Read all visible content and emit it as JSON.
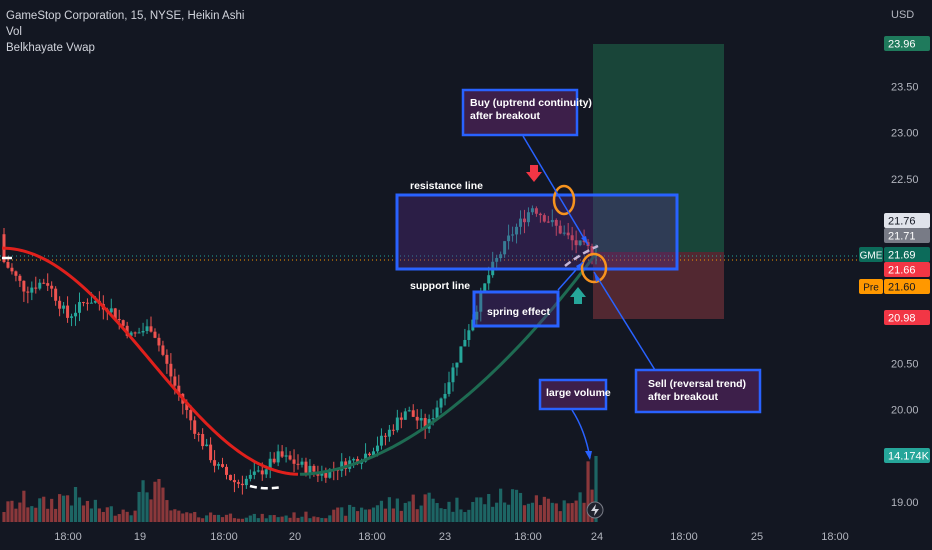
{
  "header": {
    "symbol_line": "GameStop Corporation, 15, NYSE, Heikin Ashi",
    "indicator_vol": "Vol",
    "indicator_vwap": "Belkhayate Vwap"
  },
  "price_scale": {
    "currency": "USD",
    "ticks": [
      "23.50",
      "23.00",
      "22.50",
      "22.00",
      "21.50",
      "20.50",
      "20.00",
      "19.50",
      "19.00"
    ],
    "badges": [
      {
        "label": "23.96",
        "color": "#1f7a5c",
        "text_color": "#ffffff"
      },
      {
        "label": "21.76",
        "color": "#e0e3eb",
        "text_color": "#131722"
      },
      {
        "label": "21.71",
        "color": "#787b86",
        "text_color": "#ffffff"
      },
      {
        "label": "21.69",
        "color": "#0c6b5a",
        "text_color": "#ffffff",
        "tag": "GME"
      },
      {
        "label": "21.66",
        "color": "#f23645",
        "text_color": "#ffffff"
      },
      {
        "label": "21.60",
        "color": "#ff9800",
        "text_color": "#131722",
        "tag": "Pre"
      },
      {
        "label": "20.98",
        "color": "#f23645",
        "text_color": "#ffffff"
      },
      {
        "label": "14.174K",
        "color": "#26a69a",
        "text_color": "#ffffff"
      }
    ]
  },
  "time_axis": {
    "labels": [
      "18:00",
      "19",
      "18:00",
      "20",
      "18:00",
      "23",
      "18:00",
      "24",
      "18:00",
      "25",
      "18:00"
    ]
  },
  "annotations": {
    "resistance": "resistance line",
    "support": "support line",
    "spring": "spring effect",
    "buy_line1": "Buy (uptrend continuity)",
    "buy_line2": "after breakout",
    "sell_line1": "Sell (reversal trend)",
    "sell_line2": "after breakout",
    "volume": "large volume"
  },
  "colors": {
    "background": "#131722",
    "up": "#26a69a",
    "down": "#ef5350",
    "vwap_down": "#e0201c",
    "vwap_up": "#1e6b52",
    "box_border": "#2962ff",
    "highlight_circle": "#f7931e",
    "target_zone": "#1b4a3c",
    "stop_zone": "#5a2a33"
  },
  "chart_data": {
    "type": "candlestick",
    "style": "Heikin Ashi",
    "symbol": "GME",
    "interval": "15",
    "ylim": [
      18.85,
      24.2
    ],
    "grid": false,
    "candles_ohlc_sampled": [
      [
        21.9,
        22.0,
        21.5,
        21.6
      ],
      [
        21.6,
        21.8,
        21.2,
        21.3
      ],
      [
        21.3,
        21.6,
        21.0,
        21.4
      ],
      [
        21.4,
        21.5,
        20.9,
        21.0
      ],
      [
        21.0,
        21.3,
        20.8,
        21.2
      ],
      [
        21.2,
        21.4,
        21.0,
        21.1
      ],
      [
        21.1,
        21.2,
        20.6,
        20.8
      ],
      [
        20.8,
        21.0,
        20.5,
        20.9
      ],
      [
        20.9,
        21.0,
        20.2,
        20.3
      ],
      [
        20.3,
        20.4,
        19.6,
        19.8
      ],
      [
        19.8,
        19.9,
        19.3,
        19.4
      ],
      [
        19.4,
        19.5,
        19.0,
        19.2
      ],
      [
        19.2,
        19.4,
        19.0,
        19.3
      ],
      [
        19.3,
        19.6,
        19.2,
        19.5
      ],
      [
        19.5,
        19.6,
        19.3,
        19.4
      ],
      [
        19.4,
        19.5,
        19.2,
        19.3
      ],
      [
        19.3,
        19.5,
        19.2,
        19.4
      ],
      [
        19.4,
        19.5,
        19.3,
        19.5
      ],
      [
        19.5,
        19.8,
        19.4,
        19.7
      ],
      [
        19.7,
        20.1,
        19.6,
        20.0
      ],
      [
        20.0,
        20.1,
        19.7,
        19.8
      ],
      [
        19.8,
        20.4,
        19.8,
        20.3
      ],
      [
        20.3,
        21.0,
        20.2,
        20.9
      ],
      [
        20.9,
        21.6,
        20.8,
        21.5
      ],
      [
        21.5,
        22.0,
        21.4,
        21.9
      ],
      [
        21.9,
        22.4,
        21.8,
        22.2
      ],
      [
        22.2,
        22.3,
        21.9,
        22.0
      ],
      [
        22.0,
        22.1,
        21.7,
        21.8
      ],
      [
        21.8,
        21.9,
        21.6,
        21.7
      ]
    ],
    "volume_sampled": [
      3200,
      5200,
      4100,
      6800,
      3900,
      2800,
      3100,
      9800,
      2200,
      1600,
      1900,
      1500,
      1300,
      1400,
      1700,
      1600,
      2500,
      3400,
      4200,
      4800,
      5600,
      3900,
      4700,
      5300,
      5900,
      6900,
      4400,
      3600,
      14174
    ],
    "vwap": {
      "start": 21.75,
      "min": 19.3,
      "end": 21.72
    },
    "levels": {
      "resistance": 22.35,
      "support": 21.7,
      "target": 23.96,
      "stop": 20.98,
      "last": 21.69,
      "premarket": 21.6
    }
  }
}
